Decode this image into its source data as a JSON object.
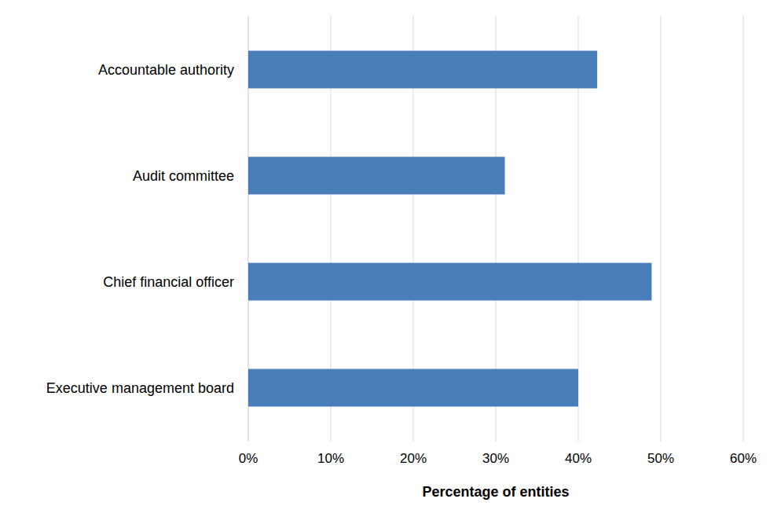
{
  "chart_data": {
    "type": "bar",
    "orientation": "horizontal",
    "x_label": "Percentage of entities",
    "categories": [
      "Accountable authority",
      "Audit committee",
      "Chief financial officer",
      "Executive management board"
    ],
    "values": [
      42.3,
      31.1,
      48.9,
      40
    ],
    "color": "#4a7ebb",
    "xlim": [
      0,
      60
    ],
    "xticks": [
      {
        "value": 0,
        "label": "0%"
      },
      {
        "value": 10,
        "label": "10%"
      },
      {
        "value": 20,
        "label": "20%"
      },
      {
        "value": 30,
        "label": "30%"
      },
      {
        "value": 40,
        "label": "40%"
      },
      {
        "value": 50,
        "label": "50%"
      },
      {
        "value": 60,
        "label": "60%"
      }
    ],
    "grid": true
  }
}
